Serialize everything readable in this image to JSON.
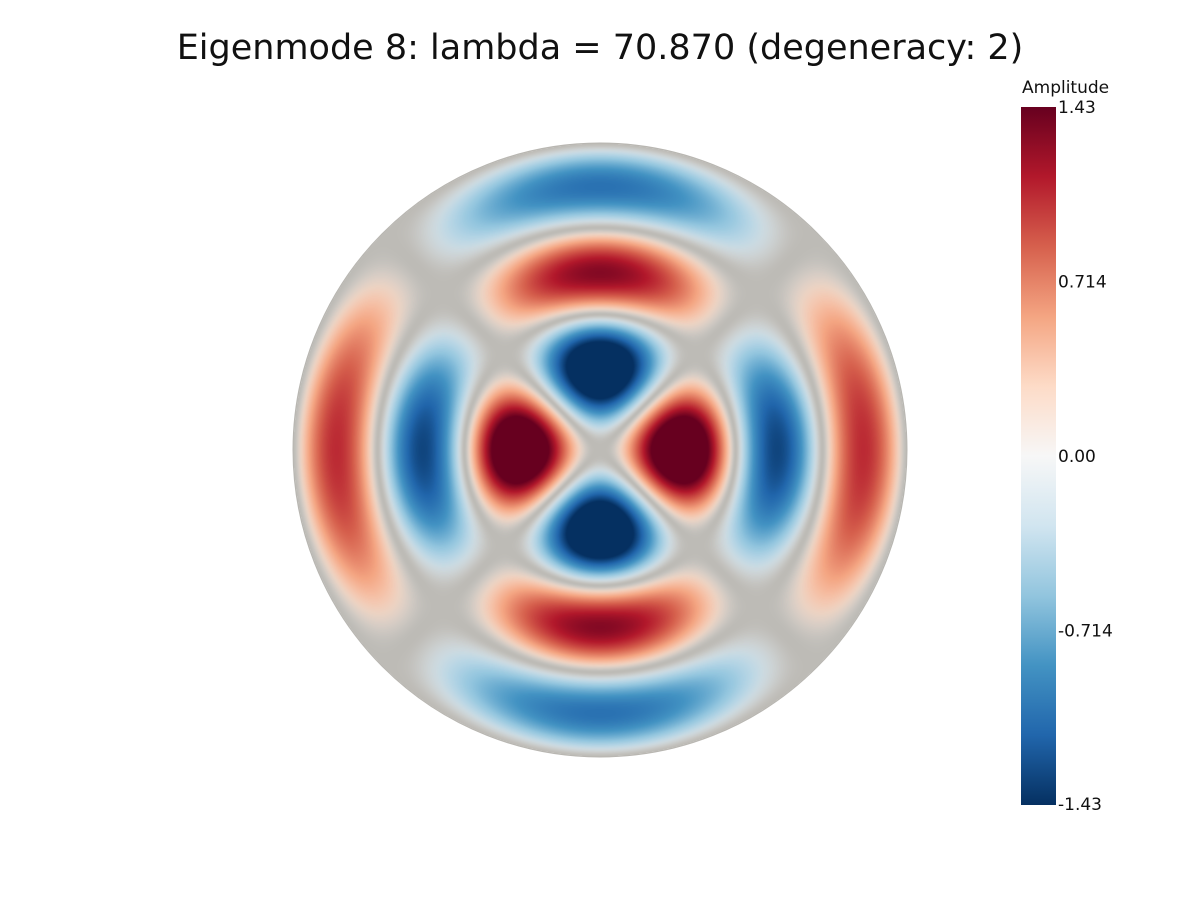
{
  "chart_data": {
    "type": "heatmap",
    "title": "Eigenmode 8: lambda = 70.870 (degeneracy: 2)",
    "domain_shape": "disk",
    "field": {
      "description_of_mode": "cos(2θ) angular dependence with two radial nodes",
      "angular_order": 2,
      "radial_nodes": 2
    },
    "colorbar": {
      "title": "Amplitude",
      "colormap": "RdBu_r",
      "range": [
        -1.43,
        1.43
      ],
      "ticks": [
        {
          "value": 1.43,
          "label": "1.43"
        },
        {
          "value": 0.714,
          "label": "0.714"
        },
        {
          "value": 0.0,
          "label": "0.00"
        },
        {
          "value": -0.714,
          "label": "-0.714"
        },
        {
          "value": -1.43,
          "label": "-1.43"
        }
      ],
      "position": "right"
    },
    "colors": {
      "max": "#67001f",
      "high": "#b2182b",
      "mid_high": "#d6604d",
      "low_high": "#f4a582",
      "near_zero_pos": "#fddbc7",
      "zero": "#f7f7f7",
      "near_zero_neg": "#d1e5f0",
      "low_neg": "#92c5de",
      "mid_neg": "#4393c3",
      "neg": "#2166ac",
      "min": "#053061",
      "nodal_gray": "#bdbbb6"
    }
  }
}
